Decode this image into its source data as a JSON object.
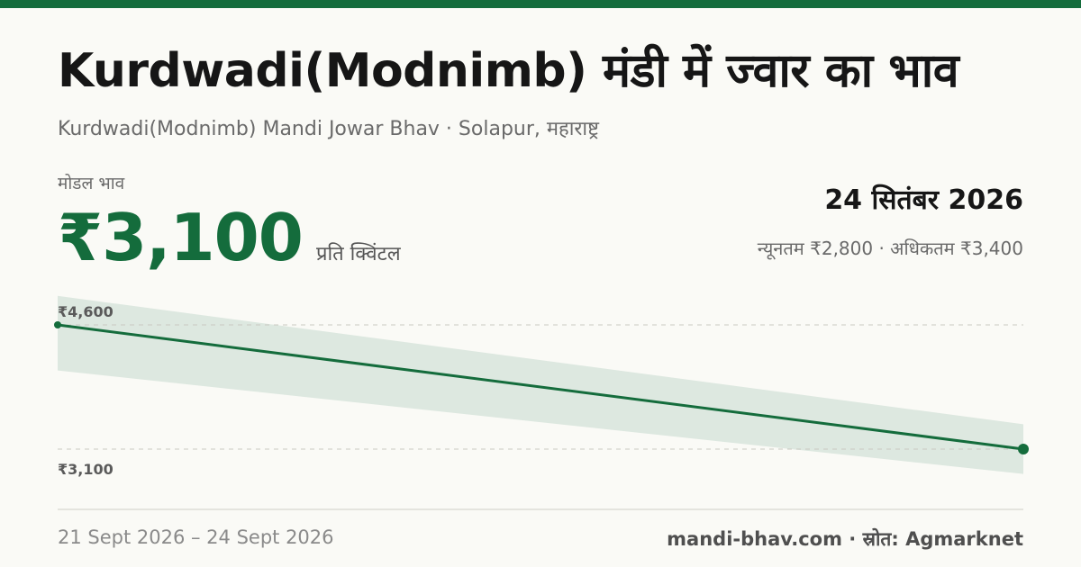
{
  "title": "Kurdwadi(Modnimb) मंडी में ज्वार का भाव",
  "subtitle": "Kurdwadi(Modnimb) Mandi Jowar Bhav · Solapur, महाराष्ट्र",
  "modal_label": "मोडल भाव",
  "modal_price": "₹3,100",
  "unit": "प्रति क्विंटल",
  "date": "24 सितंबर 2026",
  "min_max": "न्यूनतम ₹2,800 · अधिकतम ₹3,400",
  "footer": {
    "date_range": "21 Sept 2026 – 24 Sept 2026",
    "brand": "mandi-bhav.com · स्रोत: Agmarknet"
  },
  "colors": {
    "accent": "#146c3c",
    "band": "#dde8e0",
    "grid": "#c9c9c2"
  },
  "chart_data": {
    "type": "line",
    "x": [
      "21 Sept 2026",
      "24 Sept 2026"
    ],
    "series": [
      {
        "values": [
          4600,
          3100
        ]
      }
    ],
    "band": {
      "upper": [
        4950,
        3400
      ],
      "lower": [
        4050,
        2800
      ]
    },
    "tick_values": [
      4600,
      3100
    ],
    "tick_labels": [
      "₹4,600",
      "₹3,100"
    ],
    "ylim": [
      2500,
      5000
    ],
    "grid": true,
    "legend": false
  }
}
